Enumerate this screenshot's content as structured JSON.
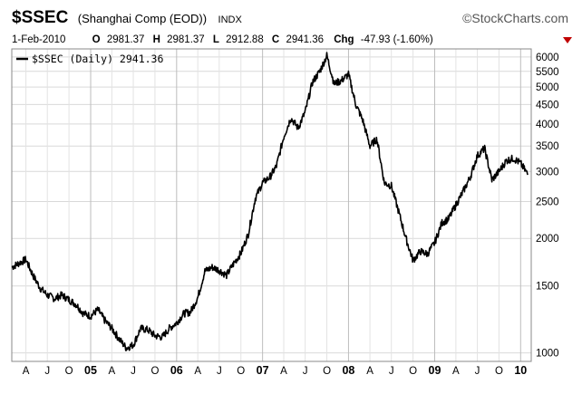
{
  "header": {
    "symbol": "$SSEC",
    "name": "(Shanghai Comp (EOD))",
    "exchange": "INDX",
    "brand": "©StockCharts.com"
  },
  "quote": {
    "date": "1-Feb-2010",
    "open_label": "O",
    "open": "2981.37",
    "high_label": "H",
    "high": "2981.37",
    "low_label": "L",
    "low": "2912.88",
    "close_label": "C",
    "close": "2941.36",
    "chg_label": "Chg",
    "chg": "-47.93 (-1.60%)",
    "chg_arrow_color": "#c00000"
  },
  "legend": {
    "text": "$SSEC (Daily) 2941.36"
  },
  "chart_data": {
    "type": "line",
    "y_scale": "log",
    "ylim": [
      950,
      6300
    ],
    "xlim": [
      "2004-02-01",
      "2010-02-15"
    ],
    "yticks": [
      1000,
      1500,
      2000,
      2500,
      3000,
      3500,
      4000,
      4500,
      5000,
      5500,
      6000
    ],
    "x_ticks": [
      {
        "date": "2004-04-01",
        "label": "A",
        "major": false
      },
      {
        "date": "2004-07-01",
        "label": "J",
        "major": false
      },
      {
        "date": "2004-10-01",
        "label": "O",
        "major": false
      },
      {
        "date": "2005-01-01",
        "label": "05",
        "major": true
      },
      {
        "date": "2005-04-01",
        "label": "A",
        "major": false
      },
      {
        "date": "2005-07-01",
        "label": "J",
        "major": false
      },
      {
        "date": "2005-10-01",
        "label": "O",
        "major": false
      },
      {
        "date": "2006-01-01",
        "label": "06",
        "major": true
      },
      {
        "date": "2006-04-01",
        "label": "A",
        "major": false
      },
      {
        "date": "2006-07-01",
        "label": "J",
        "major": false
      },
      {
        "date": "2006-10-01",
        "label": "O",
        "major": false
      },
      {
        "date": "2007-01-01",
        "label": "07",
        "major": true
      },
      {
        "date": "2007-04-01",
        "label": "A",
        "major": false
      },
      {
        "date": "2007-07-01",
        "label": "J",
        "major": false
      },
      {
        "date": "2007-10-01",
        "label": "O",
        "major": false
      },
      {
        "date": "2008-01-01",
        "label": "08",
        "major": true
      },
      {
        "date": "2008-04-01",
        "label": "A",
        "major": false
      },
      {
        "date": "2008-07-01",
        "label": "J",
        "major": false
      },
      {
        "date": "2008-10-01",
        "label": "O",
        "major": false
      },
      {
        "date": "2009-01-01",
        "label": "09",
        "major": true
      },
      {
        "date": "2009-04-01",
        "label": "A",
        "major": false
      },
      {
        "date": "2009-07-01",
        "label": "J",
        "major": false
      },
      {
        "date": "2009-10-01",
        "label": "O",
        "major": false
      },
      {
        "date": "2010-01-01",
        "label": "10",
        "major": true
      }
    ],
    "grid": true,
    "series": [
      {
        "name": "$SSEC (Daily)",
        "color": "#000000",
        "points": [
          [
            "2004-02-01",
            1680
          ],
          [
            "2004-03-01",
            1720
          ],
          [
            "2004-04-01",
            1760
          ],
          [
            "2004-05-01",
            1600
          ],
          [
            "2004-06-01",
            1480
          ],
          [
            "2004-07-01",
            1420
          ],
          [
            "2004-08-01",
            1390
          ],
          [
            "2004-09-01",
            1420
          ],
          [
            "2004-10-01",
            1380
          ],
          [
            "2004-11-01",
            1340
          ],
          [
            "2004-12-01",
            1270
          ],
          [
            "2005-01-01",
            1250
          ],
          [
            "2005-02-01",
            1300
          ],
          [
            "2005-03-01",
            1220
          ],
          [
            "2005-04-01",
            1160
          ],
          [
            "2005-05-01",
            1090
          ],
          [
            "2005-06-01",
            1030
          ],
          [
            "2005-07-01",
            1050
          ],
          [
            "2005-08-01",
            1160
          ],
          [
            "2005-09-01",
            1150
          ],
          [
            "2005-10-01",
            1110
          ],
          [
            "2005-11-01",
            1100
          ],
          [
            "2005-12-01",
            1160
          ],
          [
            "2006-01-01",
            1200
          ],
          [
            "2006-02-01",
            1270
          ],
          [
            "2006-03-01",
            1280
          ],
          [
            "2006-04-01",
            1400
          ],
          [
            "2006-05-01",
            1640
          ],
          [
            "2006-06-01",
            1680
          ],
          [
            "2006-07-01",
            1650
          ],
          [
            "2006-08-01",
            1600
          ],
          [
            "2006-09-01",
            1720
          ],
          [
            "2006-10-01",
            1830
          ],
          [
            "2006-11-01",
            2050
          ],
          [
            "2006-12-01",
            2550
          ],
          [
            "2007-01-01",
            2800
          ],
          [
            "2007-02-01",
            2900
          ],
          [
            "2007-03-01",
            3100
          ],
          [
            "2007-04-01",
            3700
          ],
          [
            "2007-05-01",
            4150
          ],
          [
            "2007-06-01",
            3900
          ],
          [
            "2007-07-01",
            4300
          ],
          [
            "2007-08-01",
            5150
          ],
          [
            "2007-09-01",
            5500
          ],
          [
            "2007-10-01",
            6050
          ],
          [
            "2007-11-01",
            5100
          ],
          [
            "2007-12-01",
            5200
          ],
          [
            "2008-01-01",
            5400
          ],
          [
            "2008-02-01",
            4500
          ],
          [
            "2008-03-01",
            4100
          ],
          [
            "2008-04-01",
            3500
          ],
          [
            "2008-05-01",
            3650
          ],
          [
            "2008-06-01",
            2800
          ],
          [
            "2008-07-01",
            2750
          ],
          [
            "2008-08-01",
            2350
          ],
          [
            "2008-09-01",
            2000
          ],
          [
            "2008-10-01",
            1750
          ],
          [
            "2008-11-01",
            1850
          ],
          [
            "2008-12-01",
            1820
          ],
          [
            "2009-01-01",
            1950
          ],
          [
            "2009-02-01",
            2200
          ],
          [
            "2009-03-01",
            2250
          ],
          [
            "2009-04-01",
            2450
          ],
          [
            "2009-05-01",
            2650
          ],
          [
            "2009-06-01",
            2900
          ],
          [
            "2009-07-01",
            3300
          ],
          [
            "2009-08-01",
            3450
          ],
          [
            "2009-09-01",
            2850
          ],
          [
            "2009-10-01",
            3000
          ],
          [
            "2009-11-01",
            3200
          ],
          [
            "2009-12-01",
            3250
          ],
          [
            "2010-01-01",
            3150
          ],
          [
            "2010-02-01",
            2941.36
          ]
        ]
      }
    ]
  }
}
